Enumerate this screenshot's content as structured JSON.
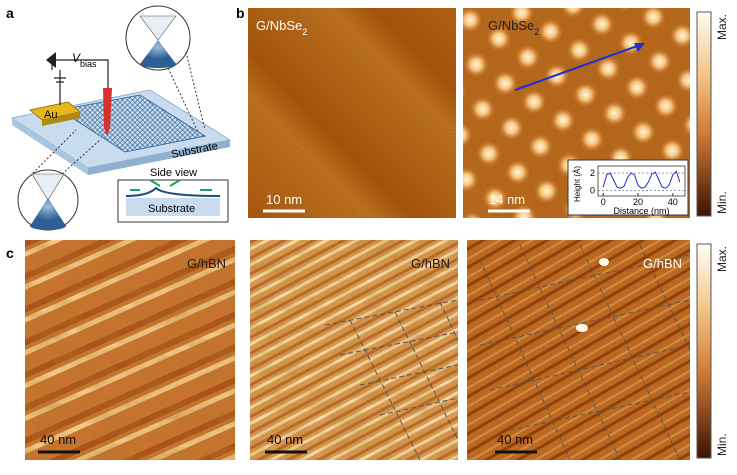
{
  "panels": {
    "a": {
      "letter": "a",
      "vbias": {
        "text": "V",
        "sub": "bias"
      },
      "au": "Au",
      "substrate": "Substrate",
      "side_view": "Side view",
      "side_substrate": "Substrate"
    },
    "b": {
      "letter": "b",
      "image1": {
        "label": {
          "text": "G/NbSe",
          "sub": "2"
        },
        "scale": "10 nm"
      },
      "image2": {
        "label": {
          "text": "G/NbSe",
          "sub": "2"
        },
        "scale": "14 nm"
      },
      "colorbar": {
        "max": "Max.",
        "min": "Min."
      },
      "inset": {
        "type": "line",
        "xlabel": "Distance (nm)",
        "ylabel": "Height (Å)",
        "xlim": [
          -3,
          47
        ],
        "ylim": [
          -0.6,
          2.8
        ],
        "xticks": [
          0,
          20,
          40
        ],
        "yticks": [
          0,
          2
        ],
        "color": "#1f2fd0",
        "x": [
          0,
          2,
          4,
          6,
          8,
          10,
          12,
          14,
          16,
          18,
          20,
          22,
          24,
          26,
          28,
          30,
          32,
          34,
          36,
          38,
          40,
          42,
          44
        ],
        "values": [
          0.4,
          1.8,
          2.0,
          1.2,
          0.4,
          0.3,
          0.5,
          1.5,
          2.0,
          1.8,
          0.6,
          0.3,
          0.4,
          1.0,
          1.9,
          2.1,
          1.2,
          0.4,
          0.3,
          0.7,
          1.8,
          2.2,
          1.0
        ]
      }
    },
    "c": {
      "letter": "c",
      "images": [
        {
          "label": "G/hBN",
          "scale": "40 nm"
        },
        {
          "label": "G/hBN",
          "scale": "40 nm"
        },
        {
          "label": "G/hBN",
          "scale": "40 nm"
        }
      ],
      "colorbar": {
        "max": "Max.",
        "min": "Min."
      }
    }
  }
}
